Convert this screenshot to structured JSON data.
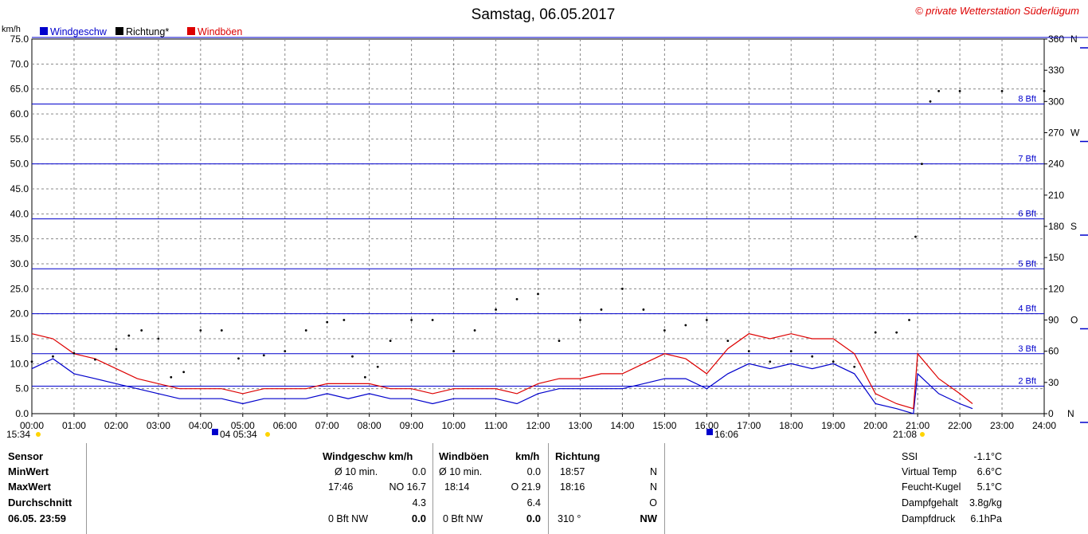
{
  "chart_data": {
    "type": "line",
    "title": "Samstag, 06.05.2017",
    "copyright": "© private Wetterstation Süderlügum",
    "ylabel_left": "km/h",
    "ylim": [
      0,
      75
    ],
    "y_ticks": [
      "0.0",
      "5.0",
      "10.0",
      "15.0",
      "20.0",
      "25.0",
      "30.0",
      "35.0",
      "40.0",
      "45.0",
      "50.0",
      "55.0",
      "60.0",
      "65.0",
      "70.0",
      "75.0"
    ],
    "y_ticks_right": [
      {
        "v": 0,
        "label": "0"
      },
      {
        "v": 30,
        "label": "30"
      },
      {
        "v": 60,
        "label": "60"
      },
      {
        "v": 90,
        "label": "90"
      },
      {
        "v": 120,
        "label": "120"
      },
      {
        "v": 150,
        "label": "150"
      },
      {
        "v": 180,
        "label": "180"
      },
      {
        "v": 210,
        "label": "210"
      },
      {
        "v": 240,
        "label": "240"
      },
      {
        "v": 270,
        "label": "270"
      },
      {
        "v": 300,
        "label": "300"
      },
      {
        "v": 330,
        "label": "330"
      },
      {
        "v": 360,
        "label": "360"
      }
    ],
    "compass_labels": [
      {
        "v": 0,
        "label": "N"
      },
      {
        "v": 90,
        "label": "O"
      },
      {
        "v": 180,
        "label": "S"
      },
      {
        "v": 270,
        "label": "W"
      },
      {
        "v": 360,
        "label": "N"
      }
    ],
    "y2lim": [
      0,
      360
    ],
    "x_ticks": [
      "00:00",
      "01:00",
      "02:00",
      "03:00",
      "04:00",
      "05:00",
      "06:00",
      "07:00",
      "08:00",
      "09:00",
      "10:00",
      "11:00",
      "12:00",
      "13:00",
      "14:00",
      "15:00",
      "16:00",
      "17:00",
      "18:00",
      "19:00",
      "20:00",
      "21:00",
      "22:00",
      "23:00",
      "24:00"
    ],
    "beaufort_lines": [
      {
        "v": 5.5,
        "label": "2 Bft"
      },
      {
        "v": 12,
        "label": "3 Bft"
      },
      {
        "v": 20,
        "label": "4 Bft"
      },
      {
        "v": 29,
        "label": "5 Bft"
      },
      {
        "v": 39,
        "label": "6 Bft"
      },
      {
        "v": 50,
        "label": "7 Bft"
      },
      {
        "v": 62,
        "label": "8 Bft"
      }
    ],
    "legend": [
      {
        "name": "Windgeschw",
        "color": "#0000cc"
      },
      {
        "name": "Richtung*",
        "color": "#000000"
      },
      {
        "name": "Windböen",
        "color": "#dd0000"
      }
    ],
    "series": [
      {
        "name": "Windgeschw",
        "color": "#0000cc",
        "axis": "left",
        "x": [
          0,
          0.5,
          1,
          1.5,
          2,
          2.5,
          3,
          3.5,
          4,
          4.5,
          5,
          5.5,
          6,
          6.5,
          7,
          7.5,
          8,
          8.5,
          9,
          9.5,
          10,
          10.5,
          11,
          11.5,
          12,
          12.5,
          13,
          13.5,
          14,
          14.5,
          15,
          15.5,
          16,
          16.5,
          17,
          17.5,
          18,
          18.5,
          19,
          19.5,
          20,
          20.5,
          20.9,
          21,
          21.5,
          22,
          22.3
        ],
        "y": [
          9,
          11,
          8,
          7,
          6,
          5,
          4,
          3,
          3,
          3,
          2,
          3,
          3,
          3,
          4,
          3,
          4,
          3,
          3,
          2,
          3,
          3,
          3,
          2,
          4,
          5,
          5,
          5,
          5,
          6,
          7,
          7,
          5,
          8,
          10,
          9,
          10,
          9,
          10,
          8,
          2,
          1,
          0,
          8,
          4,
          2,
          1
        ]
      },
      {
        "name": "Windböen",
        "color": "#dd0000",
        "axis": "left",
        "x": [
          0,
          0.5,
          1,
          1.5,
          2,
          2.5,
          3,
          3.5,
          4,
          4.5,
          5,
          5.5,
          6,
          6.5,
          7,
          7.5,
          8,
          8.5,
          9,
          9.5,
          10,
          10.5,
          11,
          11.5,
          12,
          12.5,
          13,
          13.5,
          14,
          14.5,
          15,
          15.5,
          16,
          16.5,
          17,
          17.5,
          18,
          18.5,
          19,
          19.5,
          20,
          20.5,
          20.9,
          21,
          21.5,
          22,
          22.3
        ],
        "y": [
          16,
          15,
          12,
          11,
          9,
          7,
          6,
          5,
          5,
          5,
          4,
          5,
          5,
          5,
          6,
          6,
          6,
          5,
          5,
          4,
          5,
          5,
          5,
          4,
          6,
          7,
          7,
          8,
          8,
          10,
          12,
          11,
          8,
          13,
          16,
          15,
          16,
          15,
          15,
          12,
          4,
          2,
          1,
          12,
          7,
          4,
          2
        ]
      },
      {
        "name": "Richtung*",
        "color": "#000000",
        "axis": "right",
        "x": [
          0,
          0.5,
          1,
          1.5,
          2,
          2.3,
          2.6,
          3,
          3.3,
          3.6,
          4,
          4.5,
          4.9,
          5.5,
          6,
          6.5,
          7,
          7.4,
          7.6,
          7.9,
          8.2,
          8.5,
          9,
          9.5,
          10,
          10.5,
          11,
          11.5,
          12,
          12.5,
          13,
          13.5,
          14,
          14.5,
          15,
          15.5,
          16,
          16.5,
          17,
          17.5,
          18,
          18.5,
          19,
          19.5,
          20,
          20.5,
          20.8,
          20.95,
          21.1,
          21.3,
          21.5,
          22,
          23,
          24
        ],
        "y": [
          50,
          55,
          58,
          52,
          62,
          75,
          80,
          72,
          35,
          40,
          80,
          80,
          53,
          56,
          60,
          80,
          88,
          90,
          55,
          35,
          45,
          70,
          90,
          90,
          60,
          80,
          100,
          110,
          115,
          70,
          90,
          100,
          120,
          100,
          80,
          85,
          90,
          70,
          60,
          50,
          60,
          55,
          50,
          45,
          78,
          78,
          90,
          170,
          240,
          300,
          310,
          310,
          310,
          310
        ]
      }
    ]
  },
  "footer": {
    "time_left": "15:34",
    "time_mid": "04  05:34",
    "time_mid2": "16:06",
    "time_right": "21:08"
  },
  "table": {
    "row_labels": [
      "Sensor",
      "MinWert",
      "MaxWert",
      "Durchschnitt",
      "06.05. 23:59"
    ],
    "windgeschw": {
      "header": "Windgeschw  km/h",
      "min_label": "Ø 10 min.",
      "min_val": "0.0",
      "max_time": "17:46",
      "max_val": "NO 16.7",
      "avg": "4.3",
      "now_bft": "0 Bft NW",
      "now_val": "0.0"
    },
    "windboeen": {
      "header_a": "Windböen",
      "header_b": "km/h",
      "min_label": "Ø 10 min.",
      "min_val": "0.0",
      "max_time": "18:14",
      "max_val": "O 21.9",
      "avg": "6.4",
      "now_bft": "0 Bft NW",
      "now_val": "0.0"
    },
    "richtung": {
      "header": "Richtung",
      "min_time": "18:57",
      "min_val": "N",
      "max_time": "18:16",
      "max_val": "N",
      "avg": "O",
      "now_deg": "310 °",
      "now_val": "NW"
    },
    "extra": [
      {
        "label": "SSI",
        "value": "-1.1°C"
      },
      {
        "label": "Virtual Temp",
        "value": "6.6°C"
      },
      {
        "label": "Feucht-Kugel",
        "value": "5.1°C"
      },
      {
        "label": "Dampfgehalt",
        "value": "3.8g/kg"
      },
      {
        "label": "Dampfdruck",
        "value": "6.1hPa"
      }
    ]
  }
}
